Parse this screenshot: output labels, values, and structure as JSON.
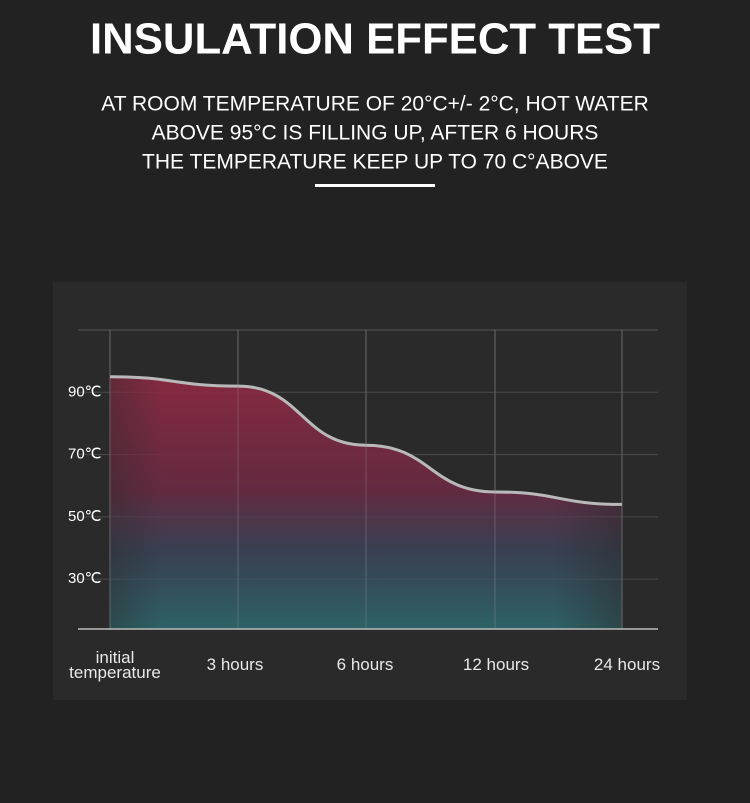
{
  "chart_data": {
    "type": "area",
    "title": "INSULATION EFFECT TEST",
    "subtitle": [
      "AT ROOM TEMPERATURE OF 20°C+/- 2°C, HOT WATER",
      "ABOVE 95°C IS FILLING UP, AFTER 6 HOURS",
      "THE TEMPERATURE KEEP UP TO 70 C°ABOVE"
    ],
    "categories": [
      "initial temperature",
      "3 hours",
      "6 hours",
      "12 hours",
      "24 hours"
    ],
    "values": [
      95,
      92,
      73,
      58,
      54
    ],
    "color": "#b9b9b9",
    "ylim": [
      14,
      110
    ],
    "yticks": [
      {
        "value": 30,
        "label": "30℃"
      },
      {
        "value": 50,
        "label": "50℃"
      },
      {
        "value": 70,
        "label": "70℃"
      },
      {
        "value": 90,
        "label": "90℃"
      }
    ],
    "grid": true
  }
}
